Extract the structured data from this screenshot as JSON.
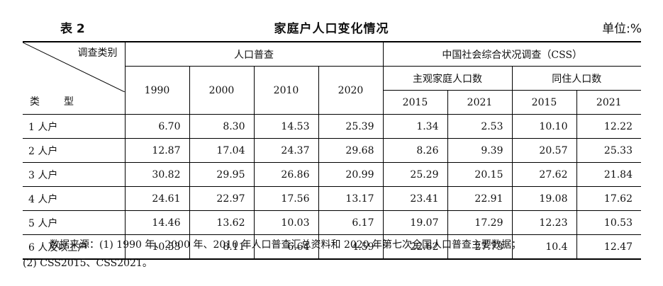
{
  "header": {
    "table_no": "表 2",
    "title": "家庭户人口变化情况",
    "unit": "单位:%"
  },
  "columns": {
    "col_header": "调查类别",
    "row_header": "类　型",
    "census": "人口普查",
    "css": "中国社会综合状况调查（CSS）",
    "census_years": [
      "1990",
      "2000",
      "2010",
      "2020"
    ],
    "subjective": "主观家庭人口数",
    "cohabiting": "同住人口数",
    "css_years": [
      "2015",
      "2021",
      "2015",
      "2021"
    ]
  },
  "rows": [
    {
      "label": "1 人户",
      "values": [
        "6.70",
        "8.30",
        "14.53",
        "25.39",
        "1.34",
        "2.53",
        "10.10",
        "12.22"
      ]
    },
    {
      "label": "2 人户",
      "values": [
        "12.87",
        "17.04",
        "24.37",
        "29.68",
        "8.26",
        "9.39",
        "20.57",
        "25.33"
      ]
    },
    {
      "label": "3 人户",
      "values": [
        "30.82",
        "29.95",
        "26.86",
        "20.99",
        "25.29",
        "20.15",
        "27.62",
        "21.84"
      ]
    },
    {
      "label": "4 人户",
      "values": [
        "24.61",
        "22.97",
        "17.56",
        "13.17",
        "23.41",
        "22.91",
        "19.08",
        "17.62"
      ]
    },
    {
      "label": "5 人户",
      "values": [
        "14.46",
        "13.62",
        "10.03",
        "6.17",
        "19.07",
        "17.29",
        "12.23",
        "10.53"
      ]
    },
    {
      "label": "6 人及以上户",
      "values": [
        "10.53",
        "8.11",
        "6.64",
        "4.59",
        "22.62",
        "27.73",
        "10.4",
        "12.47"
      ]
    }
  ],
  "notes": {
    "line1": "数据来源：(1) 1990 年、2000 年、2010 年人口普查汇总资料和 2020 年第七次全国人口普查主要数据；",
    "line2": "(2) CSS2015、CSS2021。"
  }
}
